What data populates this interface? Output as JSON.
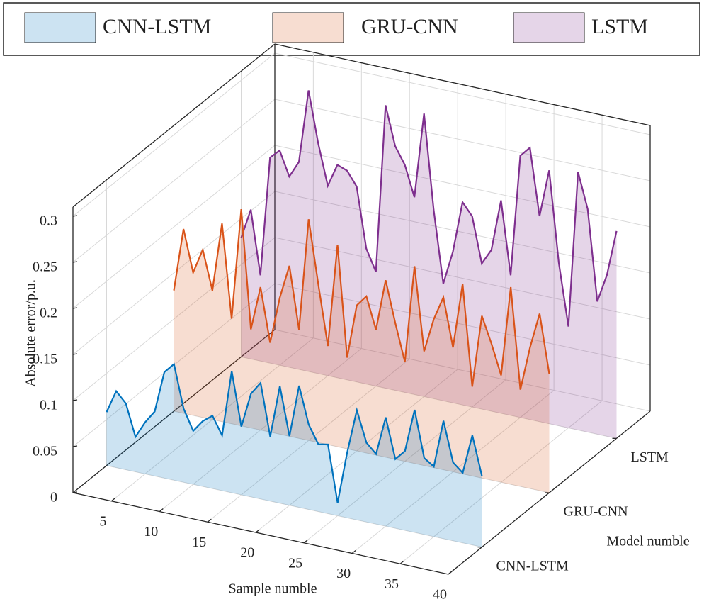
{
  "chart_data": {
    "type": "waterfall3d",
    "zlabel": "Absolute error/p.u.",
    "xlabel": "Sample numble",
    "ylabel": "Model numble",
    "x": [
      1,
      2,
      3,
      4,
      5,
      6,
      7,
      8,
      9,
      10,
      11,
      12,
      13,
      14,
      15,
      16,
      17,
      18,
      19,
      20,
      21,
      22,
      23,
      24,
      25,
      26,
      27,
      28,
      29,
      30,
      31,
      32,
      33,
      34,
      35,
      36,
      37,
      38,
      39,
      40
    ],
    "xlim": [
      1,
      40
    ],
    "xticks": [
      5,
      10,
      15,
      20,
      25,
      30,
      35,
      40
    ],
    "categories": [
      "CNN-LSTM",
      "GRU-CNN",
      "LSTM"
    ],
    "ylim": [
      0.5,
      3.5
    ],
    "zlim": [
      0,
      0.31
    ],
    "zticks": [
      0,
      0.05,
      0.1,
      0.15,
      0.2,
      0.25,
      0.3
    ],
    "grid": true,
    "legend": "top",
    "series": [
      {
        "name": "CNN-LSTM",
        "color": "#0072bd",
        "values": [
          0.058,
          0.083,
          0.072,
          0.038,
          0.056,
          0.07,
          0.115,
          0.126,
          0.08,
          0.058,
          0.071,
          0.079,
          0.06,
          0.132,
          0.074,
          0.112,
          0.126,
          0.07,
          0.127,
          0.075,
          0.132,
          0.092,
          0.073,
          0.075,
          0.014,
          0.071,
          0.119,
          0.086,
          0.076,
          0.118,
          0.075,
          0.086,
          0.133,
          0.083,
          0.076,
          0.128,
          0.085,
          0.076,
          0.119,
          0.077
        ]
      },
      {
        "name": "GRU-CNN",
        "color": "#d95319",
        "values": [
          0.131,
          0.2,
          0.155,
          0.182,
          0.14,
          0.215,
          0.114,
          0.235,
          0.107,
          0.155,
          0.097,
          0.148,
          0.185,
          0.118,
          0.24,
          0.172,
          0.107,
          0.219,
          0.099,
          0.158,
          0.17,
          0.136,
          0.192,
          0.148,
          0.108,
          0.214,
          0.124,
          0.161,
          0.187,
          0.135,
          0.206,
          0.097,
          0.176,
          0.148,
          0.116,
          0.214,
          0.105,
          0.153,
          0.192,
          0.129
        ]
      },
      {
        "name": "LSTM",
        "color": "#7e2f8e",
        "values": [
          0.129,
          0.162,
          0.093,
          0.223,
          0.233,
          0.207,
          0.225,
          0.305,
          0.25,
          0.206,
          0.231,
          0.227,
          0.212,
          0.147,
          0.124,
          0.307,
          0.265,
          0.247,
          0.214,
          0.307,
          0.205,
          0.127,
          0.164,
          0.22,
          0.207,
          0.158,
          0.175,
          0.231,
          0.152,
          0.284,
          0.295,
          0.223,
          0.275,
          0.177,
          0.11,
          0.28,
          0.242,
          0.144,
          0.175,
          0.225
        ]
      }
    ]
  }
}
